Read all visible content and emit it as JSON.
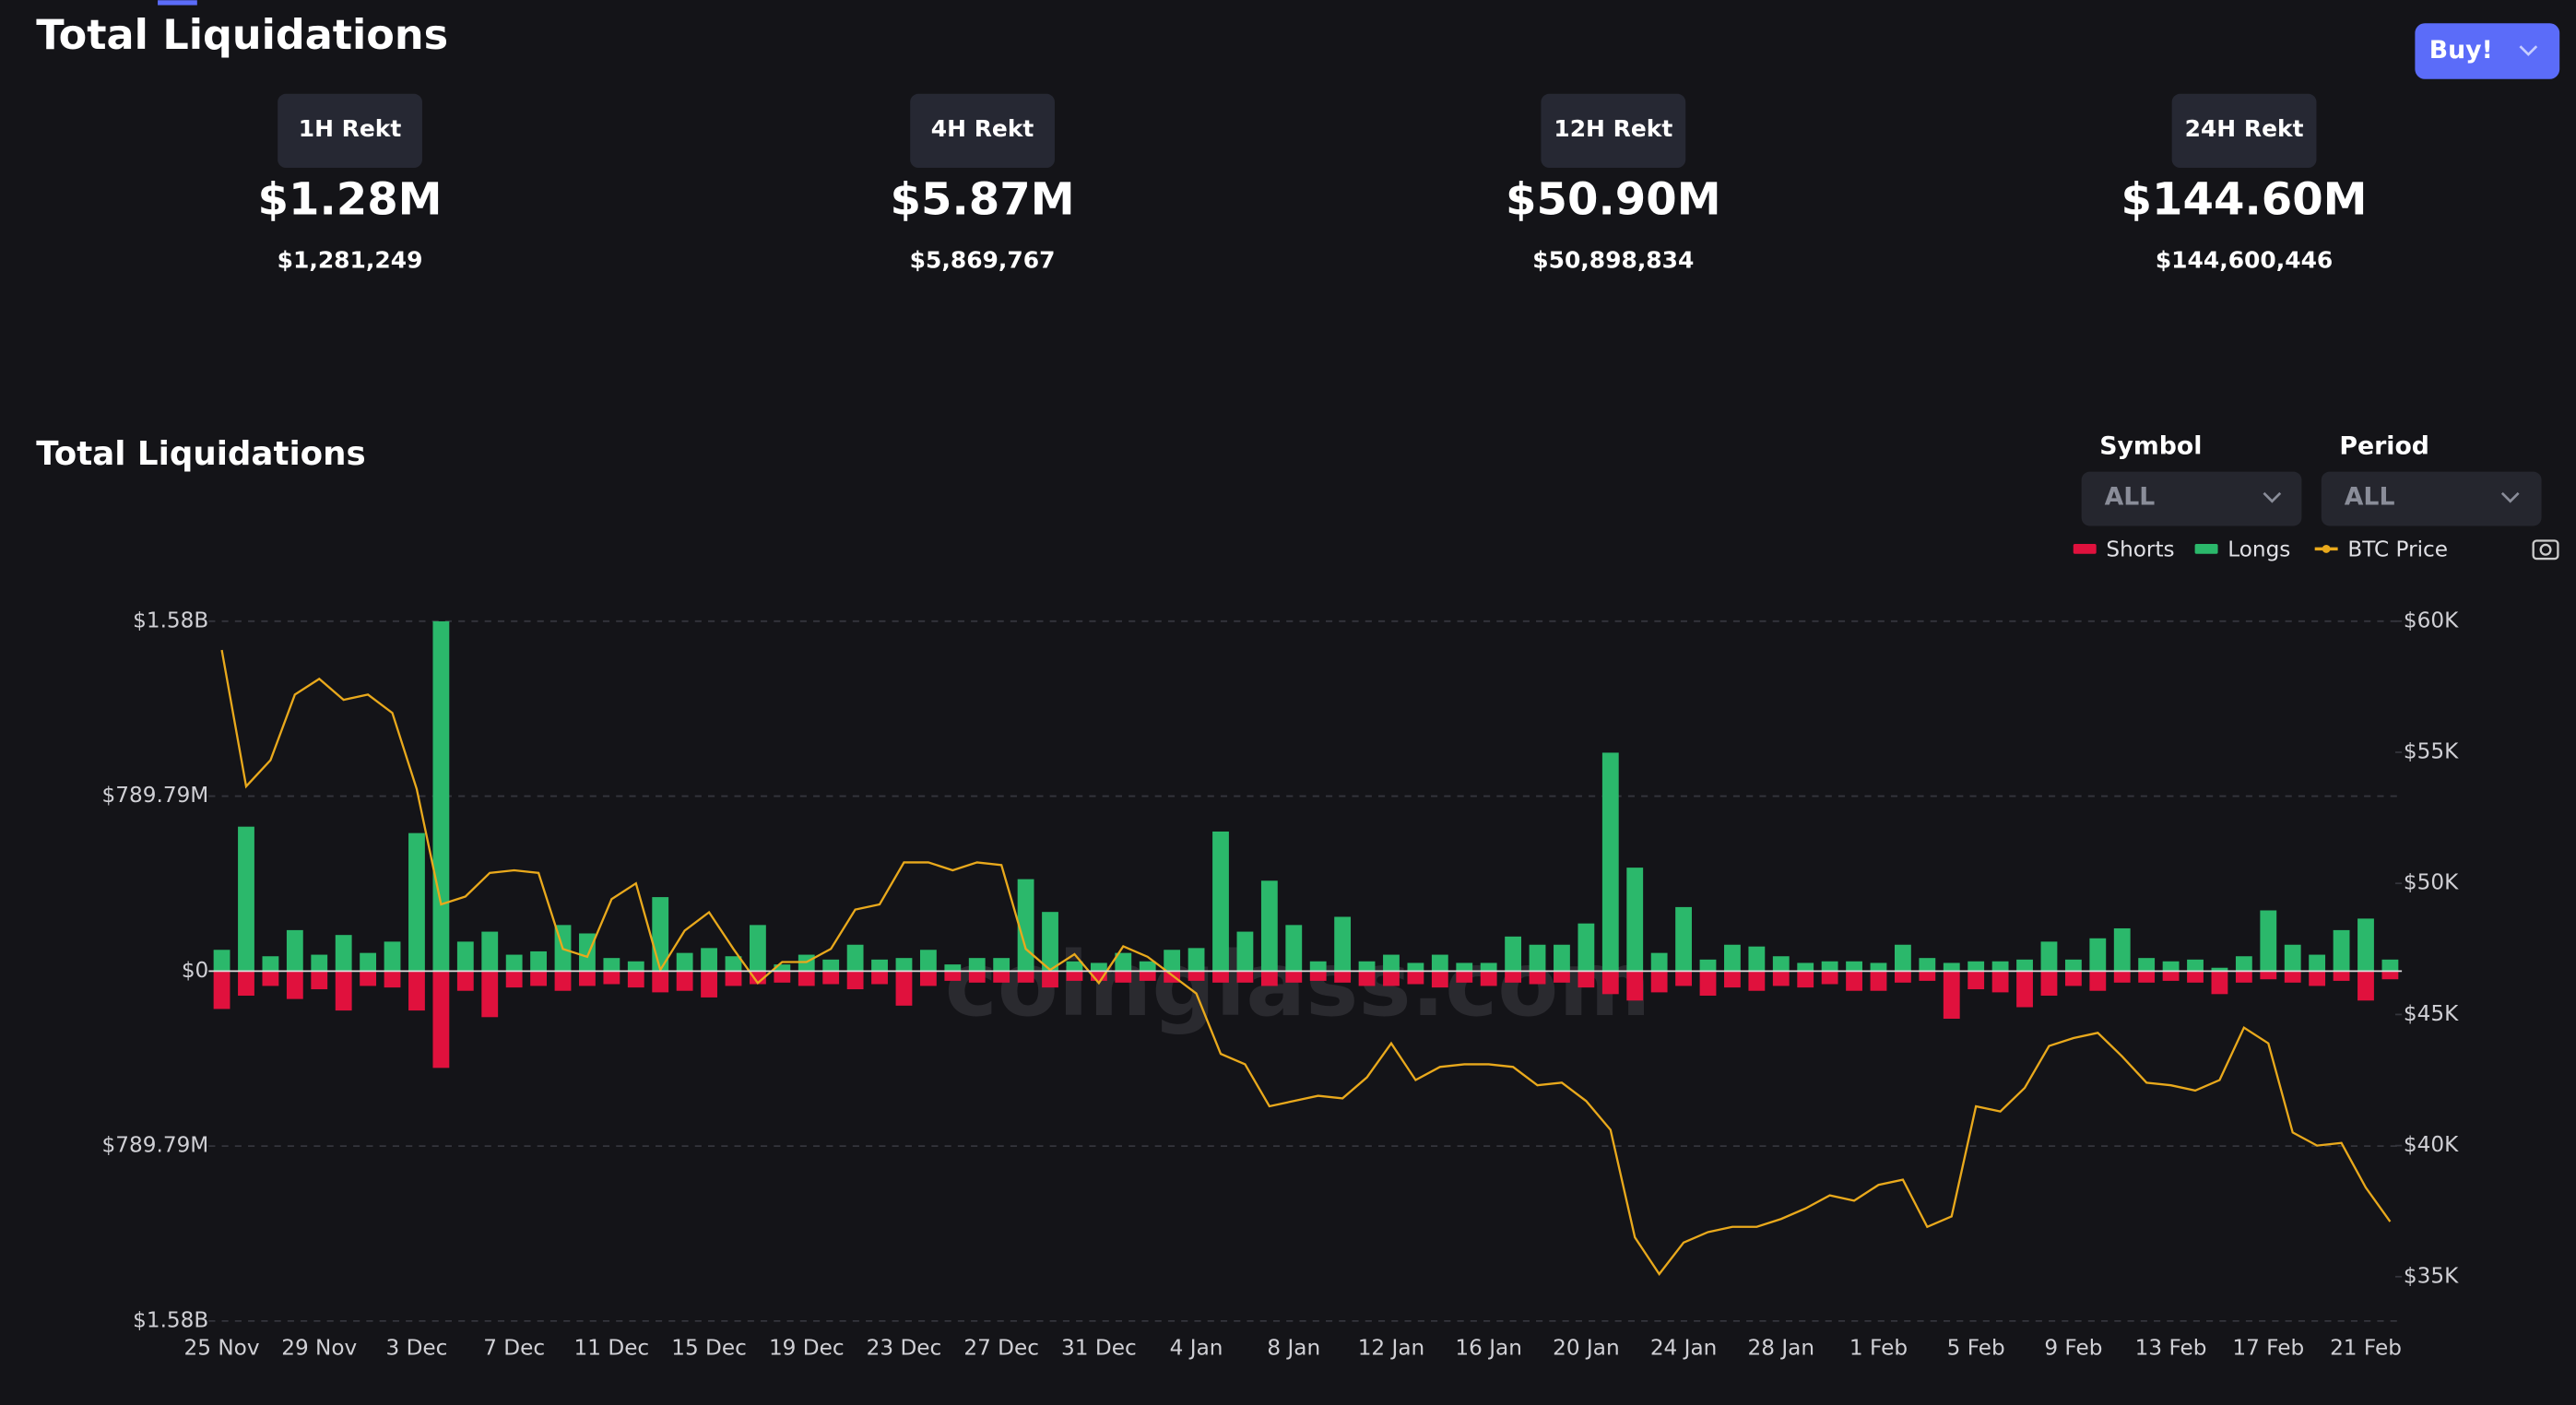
{
  "header": {
    "title": "Total Liquidations",
    "buy_button": "Buy!"
  },
  "stats": [
    {
      "label": "1H Rekt",
      "value": "$1.28M",
      "exact": "$1,281,249"
    },
    {
      "label": "4H Rekt",
      "value": "$5.87M",
      "exact": "$5,869,767"
    },
    {
      "label": "12H Rekt",
      "value": "$50.90M",
      "exact": "$50,898,834"
    },
    {
      "label": "24H Rekt",
      "value": "$144.60M",
      "exact": "$144,600,446"
    }
  ],
  "controls": {
    "symbol_label": "Symbol",
    "symbol_value": "ALL",
    "period_label": "Period",
    "period_value": "ALL"
  },
  "chart_data": {
    "type": "bar",
    "title": "Total Liquidations",
    "watermark": "coinglass.com",
    "grid": true,
    "categories": [
      "25 Nov",
      null,
      null,
      null,
      "29 Nov",
      null,
      null,
      null,
      "3 Dec",
      null,
      null,
      null,
      "7 Dec",
      null,
      null,
      null,
      "11 Dec",
      null,
      null,
      null,
      "15 Dec",
      null,
      null,
      null,
      "19 Dec",
      null,
      null,
      null,
      "23 Dec",
      null,
      null,
      null,
      "27 Dec",
      null,
      null,
      null,
      "31 Dec",
      null,
      null,
      null,
      "4 Jan",
      null,
      null,
      null,
      "8 Jan",
      null,
      null,
      null,
      "12 Jan",
      null,
      null,
      null,
      "16 Jan",
      null,
      null,
      null,
      "20 Jan",
      null,
      null,
      null,
      "24 Jan",
      null,
      null,
      null,
      "28 Jan",
      null,
      null,
      null,
      "1 Feb",
      null,
      null,
      null,
      "5 Feb",
      null,
      null,
      null,
      "9 Feb",
      null,
      null,
      null,
      "13 Feb",
      null,
      null,
      null,
      "17 Feb",
      null,
      null,
      null,
      "21 Feb",
      null
    ],
    "ylim": [
      -1579.58,
      1579.58
    ],
    "yticks": [
      {
        "value": 1579.58,
        "label": "$1.58B"
      },
      {
        "value": 789.79,
        "label": "$789.79M"
      },
      {
        "value": 0,
        "label": "$0"
      },
      {
        "value": -789.79,
        "label": "$789.79M"
      },
      {
        "value": -1579.58,
        "label": "$1.58B"
      }
    ],
    "y2lim": [
      33310,
      60000
    ],
    "y2ticks": [
      {
        "value": 60000,
        "label": "$60K"
      },
      {
        "value": 55000,
        "label": "$55K"
      },
      {
        "value": 50000,
        "label": "$50K"
      },
      {
        "value": 45000,
        "label": "$45K"
      },
      {
        "value": 40000,
        "label": "$40K"
      },
      {
        "value": 35000,
        "label": "$35K"
      }
    ],
    "series": [
      {
        "name": "Shorts",
        "color": "#e0113d",
        "type": "bar",
        "values": [
          -171,
          -111,
          -67,
          -126,
          -82,
          -178,
          -67,
          -74,
          -178,
          -437,
          -89,
          -208,
          -74,
          -67,
          -89,
          -67,
          -59,
          -74,
          -96,
          -89,
          -119,
          -67,
          -59,
          -52,
          -67,
          -59,
          -82,
          -59,
          -156,
          -67,
          -44,
          -52,
          -52,
          -52,
          -74,
          -44,
          -44,
          -52,
          -44,
          -52,
          -44,
          -52,
          -52,
          -67,
          -52,
          -44,
          -52,
          -67,
          -67,
          -59,
          -74,
          -52,
          -67,
          -52,
          -59,
          -52,
          -74,
          -104,
          -133,
          -96,
          -67,
          -111,
          -74,
          -89,
          -67,
          -74,
          -59,
          -89,
          -89,
          -52,
          -44,
          -215,
          -82,
          -96,
          -163,
          -111,
          -67,
          -89,
          -52,
          -52,
          -44,
          -52,
          -104,
          -52,
          -37,
          -52,
          -67,
          -44,
          -133,
          -37
        ]
      },
      {
        "name": "Longs",
        "color": "#2bb86b",
        "type": "bar",
        "values": [
          96,
          652,
          67,
          185,
          74,
          163,
          82,
          133,
          623,
          1579,
          133,
          178,
          74,
          89,
          208,
          170,
          59,
          44,
          334,
          82,
          104,
          67,
          208,
          30,
          74,
          52,
          119,
          52,
          59,
          96,
          30,
          59,
          59,
          415,
          267,
          44,
          37,
          82,
          44,
          96,
          104,
          630,
          178,
          408,
          208,
          44,
          245,
          44,
          74,
          37,
          74,
          37,
          37,
          156,
          119,
          119,
          215,
          986,
          467,
          82,
          289,
          52,
          119,
          111,
          67,
          37,
          44,
          44,
          37,
          119,
          59,
          37,
          44,
          44,
          52,
          133,
          52,
          148,
          193,
          59,
          44,
          52,
          15,
          67,
          274,
          119,
          74,
          185,
          237,
          52
        ]
      },
      {
        "name": "BTC Price",
        "color": "#e9a91c",
        "type": "line",
        "axis": "y2",
        "values": [
          58900,
          53700,
          54700,
          57200,
          57800,
          57000,
          57200,
          56500,
          53600,
          49200,
          49500,
          50400,
          50500,
          50400,
          47500,
          47200,
          49400,
          50000,
          46700,
          48200,
          48900,
          47500,
          46200,
          47000,
          47000,
          47500,
          49000,
          49200,
          50800,
          50800,
          50500,
          50800,
          50700,
          47500,
          46700,
          47300,
          46200,
          47600,
          47200,
          46500,
          45800,
          43500,
          43100,
          41500,
          41700,
          41900,
          41800,
          42600,
          43900,
          42500,
          43000,
          43100,
          43100,
          43000,
          42300,
          42400,
          41700,
          40600,
          36500,
          35100,
          36300,
          36700,
          36900,
          36900,
          37200,
          37600,
          38100,
          37900,
          38500,
          38700,
          36900,
          37300,
          41500,
          41300,
          42200,
          43800,
          44100,
          44300,
          43400,
          42400,
          42300,
          42100,
          42500,
          44500,
          43900,
          40500,
          40000,
          40100,
          38400,
          37100
        ]
      }
    ]
  }
}
